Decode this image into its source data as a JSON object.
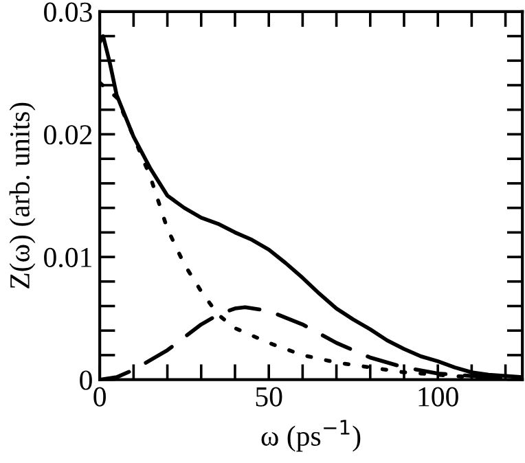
{
  "chart_data": {
    "type": "line",
    "xlabel": "ω (ps$^{−1}$)",
    "ylabel": "Z(ω) (arb. units)",
    "xlim": [
      0,
      125
    ],
    "ylim": [
      0,
      0.03
    ],
    "xticks": [
      0,
      {
        "value": 10,
        "label": null
      },
      {
        "value": 20,
        "label": null
      },
      {
        "value": 30,
        "label": null
      },
      {
        "value": 40,
        "label": null
      },
      50,
      {
        "value": 60,
        "label": null
      },
      {
        "value": 70,
        "label": null
      },
      {
        "value": 80,
        "label": null
      },
      {
        "value": 90,
        "label": null
      },
      100,
      {
        "value": 110,
        "label": null
      },
      {
        "value": 120,
        "label": null
      }
    ],
    "yticks": [
      0,
      {
        "value": 0.002,
        "label": null
      },
      {
        "value": 0.004,
        "label": null
      },
      {
        "value": 0.006,
        "label": null
      },
      {
        "value": 0.008,
        "label": null
      },
      0.01,
      {
        "value": 0.012,
        "label": null
      },
      {
        "value": 0.014,
        "label": null
      },
      {
        "value": 0.016,
        "label": null
      },
      {
        "value": 0.018,
        "label": null
      },
      0.02,
      {
        "value": 0.022,
        "label": null
      },
      {
        "value": 0.024,
        "label": null
      },
      {
        "value": 0.026,
        "label": null
      },
      {
        "value": 0.028,
        "label": null
      },
      0.03
    ],
    "grid": false,
    "legend": false,
    "series": [
      {
        "color": "#000000",
        "line_style": "solid",
        "x": [
          0,
          1,
          3,
          5,
          10,
          15,
          20,
          25,
          30,
          35,
          40,
          45,
          50,
          55,
          60,
          65,
          70,
          75,
          80,
          85,
          90,
          95,
          100,
          105,
          110,
          115,
          120,
          125
        ],
        "values": [
          0.0275,
          0.028,
          0.0258,
          0.0232,
          0.0198,
          0.0172,
          0.015,
          0.014,
          0.0132,
          0.0127,
          0.012,
          0.0114,
          0.0106,
          0.0095,
          0.0083,
          0.007,
          0.0058,
          0.0049,
          0.0041,
          0.0032,
          0.0025,
          0.0019,
          0.0015,
          0.001,
          0.0006,
          0.0004,
          0.0003,
          0.0002
        ]
      },
      {
        "color": "#000000",
        "line_style": "dotted",
        "x": [
          0,
          5,
          10,
          15,
          20,
          25,
          30,
          35,
          40,
          50,
          60,
          70,
          80,
          90,
          100,
          110,
          125
        ],
        "values": [
          0.0242,
          0.023,
          0.0198,
          0.0165,
          0.0123,
          0.0094,
          0.0072,
          0.0053,
          0.0042,
          0.003,
          0.002,
          0.0014,
          0.001,
          0.0006,
          0.0004,
          0.0002,
          0.0001
        ]
      },
      {
        "color": "#000000",
        "line_style": "dashed",
        "x": [
          0,
          5,
          10,
          20,
          30,
          35,
          40,
          43,
          50,
          60,
          70,
          80,
          90,
          100,
          110,
          125
        ],
        "values": [
          0,
          0.0002,
          0.0008,
          0.0024,
          0.0045,
          0.0053,
          0.0058,
          0.0059,
          0.0056,
          0.0045,
          0.003,
          0.0018,
          0.001,
          0.0005,
          0.0003,
          0.0001
        ]
      }
    ]
  }
}
